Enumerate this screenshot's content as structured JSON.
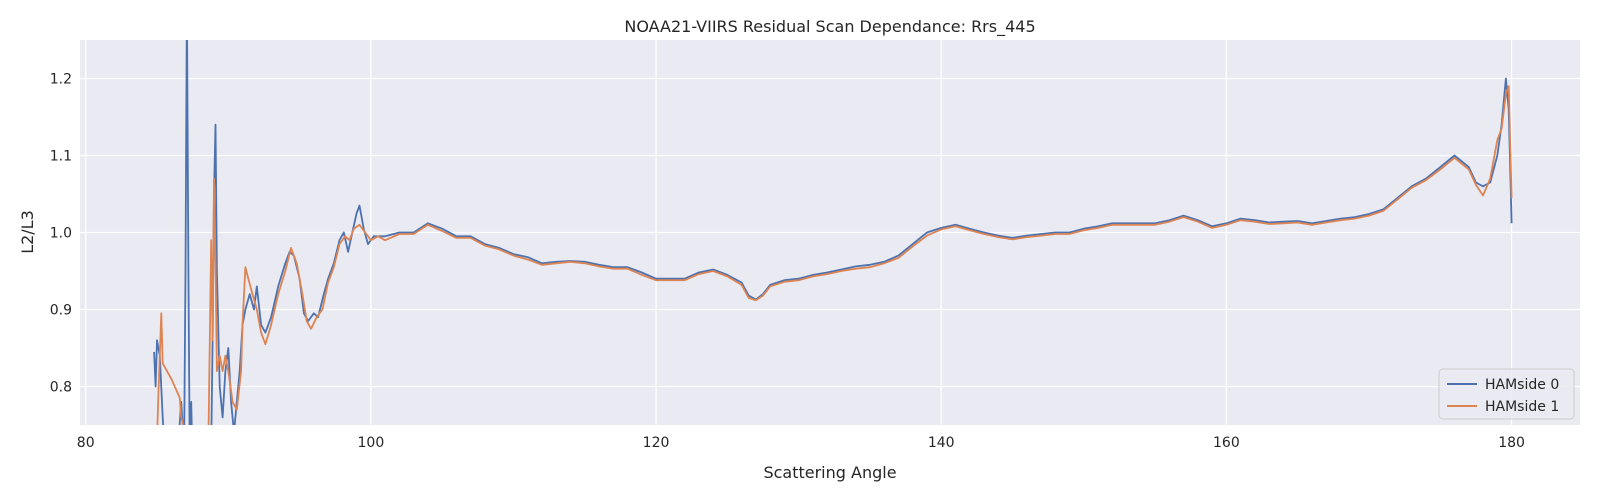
{
  "chart_data": {
    "type": "line",
    "title": "NOAA21-VIIRS Residual Scan Dependance: Rrs_445",
    "xlabel": "Scattering Angle",
    "ylabel": "L2/L3",
    "xlim": [
      79.6,
      184.8
    ],
    "ylim": [
      0.75,
      1.25
    ],
    "xticks": [
      80,
      100,
      120,
      140,
      160,
      180
    ],
    "yticks": [
      0.8,
      0.9,
      1.0,
      1.1,
      1.2
    ],
    "grid": true,
    "legend_position": "lower-right",
    "colors": {
      "background": "#eaeaf2",
      "grid": "#ffffff",
      "series0": "#4c72b0",
      "series1": "#dd8452"
    },
    "series": [
      {
        "name": "HAMside 0",
        "color": "#4c72b0",
        "points": [
          [
            84.8,
            0.845
          ],
          [
            84.9,
            0.8
          ],
          [
            85.0,
            0.86
          ],
          [
            85.2,
            0.84
          ],
          [
            85.4,
            0.76
          ],
          [
            85.6,
            0.7
          ],
          [
            86.0,
            0.66
          ],
          [
            86.4,
            0.7
          ],
          [
            86.7,
            0.78
          ],
          [
            86.9,
            0.72
          ],
          [
            87.0,
            0.95
          ],
          [
            87.1,
            1.3
          ],
          [
            87.2,
            0.95
          ],
          [
            87.3,
            0.7
          ],
          [
            87.4,
            0.78
          ],
          [
            87.5,
            0.7
          ],
          [
            88.0,
            0.65
          ],
          [
            88.5,
            0.66
          ],
          [
            88.8,
            0.72
          ],
          [
            88.9,
            0.86
          ],
          [
            89.0,
            1.05
          ],
          [
            89.1,
            1.14
          ],
          [
            89.2,
            0.95
          ],
          [
            89.4,
            0.8
          ],
          [
            89.6,
            0.76
          ],
          [
            89.8,
            0.82
          ],
          [
            90.0,
            0.85
          ],
          [
            90.2,
            0.78
          ],
          [
            90.4,
            0.74
          ],
          [
            90.6,
            0.78
          ],
          [
            90.8,
            0.82
          ],
          [
            91.0,
            0.88
          ],
          [
            91.2,
            0.9
          ],
          [
            91.5,
            0.92
          ],
          [
            91.8,
            0.9
          ],
          [
            92.0,
            0.93
          ],
          [
            92.3,
            0.88
          ],
          [
            92.6,
            0.87
          ],
          [
            93.0,
            0.89
          ],
          [
            93.5,
            0.93
          ],
          [
            94.0,
            0.96
          ],
          [
            94.3,
            0.975
          ],
          [
            94.6,
            0.97
          ],
          [
            95.0,
            0.94
          ],
          [
            95.3,
            0.895
          ],
          [
            95.6,
            0.885
          ],
          [
            96.0,
            0.895
          ],
          [
            96.3,
            0.89
          ],
          [
            96.7,
            0.92
          ],
          [
            97.0,
            0.94
          ],
          [
            97.4,
            0.96
          ],
          [
            97.8,
            0.99
          ],
          [
            98.1,
            1.0
          ],
          [
            98.4,
            0.975
          ],
          [
            98.7,
            1.0
          ],
          [
            99.0,
            1.025
          ],
          [
            99.2,
            1.035
          ],
          [
            99.5,
            1.005
          ],
          [
            99.8,
            0.985
          ],
          [
            100.2,
            0.995
          ],
          [
            101,
            0.995
          ],
          [
            102,
            1.0
          ],
          [
            103,
            1.0
          ],
          [
            104,
            1.012
          ],
          [
            105,
            1.005
          ],
          [
            106,
            0.995
          ],
          [
            107,
            0.995
          ],
          [
            108,
            0.985
          ],
          [
            109,
            0.98
          ],
          [
            110,
            0.972
          ],
          [
            111,
            0.968
          ],
          [
            112,
            0.96
          ],
          [
            113,
            0.962
          ],
          [
            114,
            0.963
          ],
          [
            115,
            0.962
          ],
          [
            116,
            0.958
          ],
          [
            117,
            0.955
          ],
          [
            118,
            0.955
          ],
          [
            119,
            0.948
          ],
          [
            120,
            0.94
          ],
          [
            121,
            0.94
          ],
          [
            122,
            0.94
          ],
          [
            123,
            0.948
          ],
          [
            124,
            0.952
          ],
          [
            125,
            0.945
          ],
          [
            126,
            0.935
          ],
          [
            126.5,
            0.918
          ],
          [
            127,
            0.913
          ],
          [
            127.5,
            0.92
          ],
          [
            128,
            0.932
          ],
          [
            129,
            0.938
          ],
          [
            130,
            0.94
          ],
          [
            131,
            0.945
          ],
          [
            132,
            0.948
          ],
          [
            133,
            0.952
          ],
          [
            134,
            0.956
          ],
          [
            135,
            0.958
          ],
          [
            136,
            0.962
          ],
          [
            137,
            0.97
          ],
          [
            138,
            0.985
          ],
          [
            139,
            1.0
          ],
          [
            140,
            1.006
          ],
          [
            141,
            1.01
          ],
          [
            142,
            1.005
          ],
          [
            143,
            1.0
          ],
          [
            144,
            0.996
          ],
          [
            145,
            0.993
          ],
          [
            146,
            0.996
          ],
          [
            147,
            0.998
          ],
          [
            148,
            1.0
          ],
          [
            149,
            1.0
          ],
          [
            150,
            1.005
          ],
          [
            151,
            1.008
          ],
          [
            152,
            1.012
          ],
          [
            153,
            1.012
          ],
          [
            154,
            1.012
          ],
          [
            155,
            1.012
          ],
          [
            156,
            1.016
          ],
          [
            157,
            1.022
          ],
          [
            158,
            1.016
          ],
          [
            159,
            1.008
          ],
          [
            160,
            1.012
          ],
          [
            161,
            1.018
          ],
          [
            162,
            1.016
          ],
          [
            163,
            1.013
          ],
          [
            164,
            1.014
          ],
          [
            165,
            1.015
          ],
          [
            166,
            1.012
          ],
          [
            167,
            1.015
          ],
          [
            168,
            1.018
          ],
          [
            169,
            1.02
          ],
          [
            170,
            1.024
          ],
          [
            171,
            1.03
          ],
          [
            172,
            1.045
          ],
          [
            173,
            1.06
          ],
          [
            174,
            1.07
          ],
          [
            175,
            1.085
          ],
          [
            176,
            1.1
          ],
          [
            177,
            1.085
          ],
          [
            177.5,
            1.065
          ],
          [
            178,
            1.06
          ],
          [
            178.5,
            1.065
          ],
          [
            179,
            1.1
          ],
          [
            179.3,
            1.14
          ],
          [
            179.6,
            1.2
          ],
          [
            179.8,
            1.16
          ],
          [
            180.0,
            1.012
          ]
        ]
      },
      {
        "name": "HAMside 1",
        "color": "#dd8452",
        "points": [
          [
            85.0,
            0.73
          ],
          [
            85.1,
            0.79
          ],
          [
            85.3,
            0.895
          ],
          [
            85.4,
            0.83
          ],
          [
            86.0,
            0.81
          ],
          [
            86.6,
            0.785
          ],
          [
            86.7,
            0.76
          ],
          [
            87.0,
            0.74
          ],
          [
            87.5,
            0.71
          ],
          [
            88.0,
            0.7
          ],
          [
            88.6,
            0.72
          ],
          [
            88.8,
            0.99
          ],
          [
            88.9,
            0.86
          ],
          [
            89.0,
            1.07
          ],
          [
            89.1,
            0.96
          ],
          [
            89.2,
            0.82
          ],
          [
            89.4,
            0.84
          ],
          [
            89.6,
            0.82
          ],
          [
            89.8,
            0.84
          ],
          [
            90.0,
            0.82
          ],
          [
            90.3,
            0.78
          ],
          [
            90.6,
            0.77
          ],
          [
            90.9,
            0.82
          ],
          [
            91.0,
            0.88
          ],
          [
            91.2,
            0.955
          ],
          [
            91.4,
            0.94
          ],
          [
            91.7,
            0.92
          ],
          [
            92.0,
            0.9
          ],
          [
            92.3,
            0.87
          ],
          [
            92.6,
            0.855
          ],
          [
            93.0,
            0.88
          ],
          [
            93.5,
            0.92
          ],
          [
            94.0,
            0.95
          ],
          [
            94.4,
            0.98
          ],
          [
            94.8,
            0.96
          ],
          [
            95.2,
            0.92
          ],
          [
            95.5,
            0.885
          ],
          [
            95.8,
            0.875
          ],
          [
            96.2,
            0.89
          ],
          [
            96.6,
            0.9
          ],
          [
            97.0,
            0.935
          ],
          [
            97.4,
            0.955
          ],
          [
            97.8,
            0.985
          ],
          [
            98.2,
            0.995
          ],
          [
            98.5,
            0.99
          ],
          [
            98.8,
            1.005
          ],
          [
            99.2,
            1.01
          ],
          [
            99.6,
            1.0
          ],
          [
            100.0,
            0.99
          ],
          [
            100.5,
            0.995
          ],
          [
            101,
            0.99
          ],
          [
            102,
            0.998
          ],
          [
            103,
            0.998
          ],
          [
            104,
            1.01
          ],
          [
            105,
            1.002
          ],
          [
            106,
            0.993
          ],
          [
            107,
            0.993
          ],
          [
            108,
            0.983
          ],
          [
            109,
            0.978
          ],
          [
            110,
            0.97
          ],
          [
            111,
            0.965
          ],
          [
            112,
            0.958
          ],
          [
            113,
            0.96
          ],
          [
            114,
            0.962
          ],
          [
            115,
            0.96
          ],
          [
            116,
            0.956
          ],
          [
            117,
            0.953
          ],
          [
            118,
            0.953
          ],
          [
            119,
            0.945
          ],
          [
            120,
            0.938
          ],
          [
            121,
            0.938
          ],
          [
            122,
            0.938
          ],
          [
            123,
            0.946
          ],
          [
            124,
            0.95
          ],
          [
            125,
            0.943
          ],
          [
            126,
            0.932
          ],
          [
            126.5,
            0.915
          ],
          [
            127,
            0.912
          ],
          [
            127.5,
            0.918
          ],
          [
            128,
            0.93
          ],
          [
            129,
            0.936
          ],
          [
            130,
            0.938
          ],
          [
            131,
            0.943
          ],
          [
            132,
            0.946
          ],
          [
            133,
            0.95
          ],
          [
            134,
            0.953
          ],
          [
            135,
            0.955
          ],
          [
            136,
            0.96
          ],
          [
            137,
            0.967
          ],
          [
            138,
            0.982
          ],
          [
            139,
            0.996
          ],
          [
            140,
            1.004
          ],
          [
            141,
            1.008
          ],
          [
            142,
            1.003
          ],
          [
            143,
            0.998
          ],
          [
            144,
            0.994
          ],
          [
            145,
            0.991
          ],
          [
            146,
            0.994
          ],
          [
            147,
            0.996
          ],
          [
            148,
            0.998
          ],
          [
            149,
            0.998
          ],
          [
            150,
            1.003
          ],
          [
            151,
            1.006
          ],
          [
            152,
            1.01
          ],
          [
            153,
            1.01
          ],
          [
            154,
            1.01
          ],
          [
            155,
            1.01
          ],
          [
            156,
            1.014
          ],
          [
            157,
            1.02
          ],
          [
            158,
            1.014
          ],
          [
            159,
            1.006
          ],
          [
            160,
            1.01
          ],
          [
            161,
            1.016
          ],
          [
            162,
            1.014
          ],
          [
            163,
            1.011
          ],
          [
            164,
            1.012
          ],
          [
            165,
            1.013
          ],
          [
            166,
            1.01
          ],
          [
            167,
            1.013
          ],
          [
            168,
            1.016
          ],
          [
            169,
            1.018
          ],
          [
            170,
            1.022
          ],
          [
            171,
            1.028
          ],
          [
            172,
            1.043
          ],
          [
            173,
            1.058
          ],
          [
            174,
            1.068
          ],
          [
            175,
            1.082
          ],
          [
            176,
            1.097
          ],
          [
            177,
            1.082
          ],
          [
            177.5,
            1.062
          ],
          [
            178,
            1.048
          ],
          [
            178.5,
            1.07
          ],
          [
            179,
            1.12
          ],
          [
            179.3,
            1.135
          ],
          [
            179.6,
            1.18
          ],
          [
            179.8,
            1.19
          ],
          [
            180.0,
            1.045
          ]
        ]
      }
    ]
  }
}
